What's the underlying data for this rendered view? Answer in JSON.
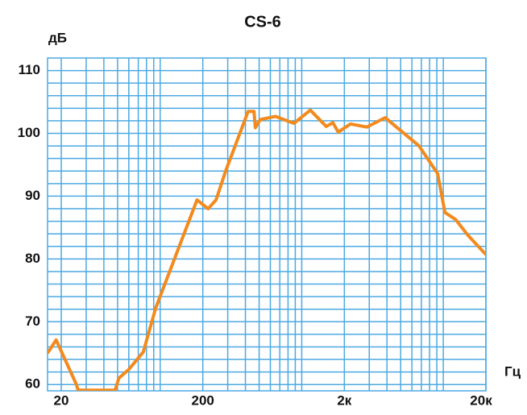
{
  "chart_data": {
    "type": "line",
    "title": "CS-6",
    "y_label": "дБ",
    "x_label": "Гц",
    "x": [
      16,
      18.4,
      25.6,
      26.3,
      48,
      51,
      60,
      76,
      93,
      182,
      218,
      248,
      290,
      418,
      460,
      470,
      509,
      653,
      880,
      1150,
      1490,
      1660,
      1810,
      2210,
      2880,
      3890,
      6740,
      9120,
      10270,
      12200,
      14900,
      20000
    ],
    "series": [
      {
        "name": "CS-6",
        "color": "#f28a1e",
        "values": [
          65.0,
          67.1,
          60.0,
          59.1,
          59.1,
          61.0,
          62.4,
          65.2,
          72.2,
          89.4,
          88.0,
          89.4,
          94.0,
          103.5,
          103.5,
          100.9,
          102.2,
          102.7,
          101.6,
          103.7,
          101.1,
          101.7,
          100.2,
          101.5,
          101.0,
          102.5,
          98.0,
          93.6,
          87.4,
          86.3,
          83.8,
          80.7
        ]
      }
    ],
    "xlim": [
      16,
      20000
    ],
    "ylim": [
      59,
      112
    ],
    "xlog": true,
    "xticks": [
      20,
      200,
      {
        "value": 2000,
        "label": "2к"
      },
      {
        "value": 20000,
        "label": "20к"
      }
    ],
    "yticks": [
      60,
      70,
      80,
      90,
      100,
      110
    ],
    "xgrid": [
      20,
      30,
      40,
      50,
      60,
      70,
      80,
      90,
      100,
      200,
      300,
      400,
      500,
      600,
      700,
      800,
      900,
      1000,
      2000,
      3000,
      4000,
      5000,
      6000,
      7000,
      8000,
      9000,
      10000,
      20000
    ],
    "ygrid": [
      60,
      62,
      64,
      66,
      68,
      70,
      72,
      74,
      76,
      78,
      80,
      82,
      84,
      86,
      88,
      90,
      92,
      94,
      96,
      98,
      100,
      102,
      104,
      106,
      108,
      110
    ],
    "grid_color": "#4ba9e2"
  }
}
